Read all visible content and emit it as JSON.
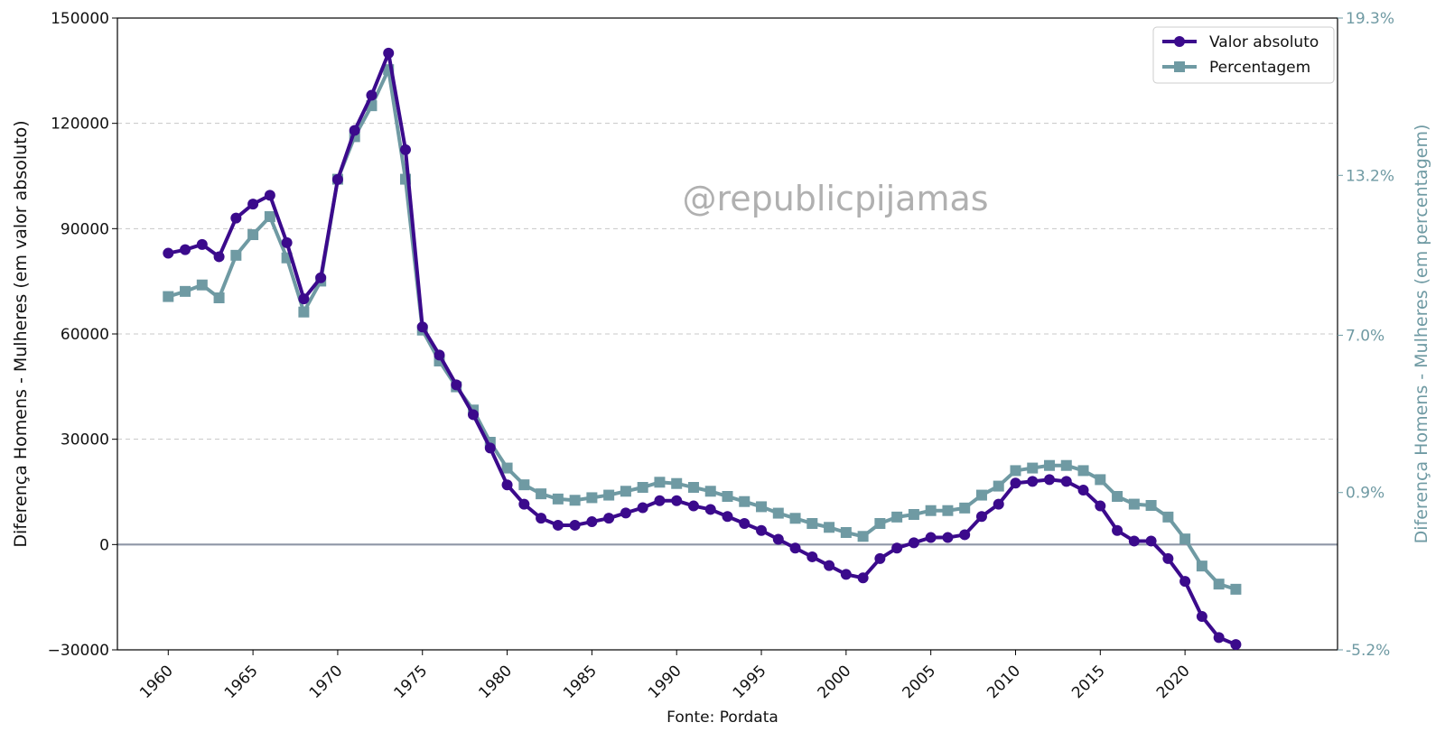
{
  "watermark": "@republicpijamas",
  "footer": "Fonte: Pordata",
  "chart_data": {
    "type": "line",
    "title": "",
    "xlabel": "",
    "ylabel": "Diferença Homens - Mulheres (em valor absoluto)",
    "ylabel_right": "Diferença Homens - Mulheres (em percentagem)",
    "x": [
      1960,
      1961,
      1962,
      1963,
      1964,
      1965,
      1966,
      1967,
      1968,
      1969,
      1970,
      1971,
      1972,
      1973,
      1974,
      1975,
      1976,
      1977,
      1978,
      1979,
      1980,
      1981,
      1982,
      1983,
      1984,
      1985,
      1986,
      1987,
      1988,
      1989,
      1990,
      1991,
      1992,
      1993,
      1994,
      1995,
      1996,
      1997,
      1998,
      1999,
      2000,
      2001,
      2002,
      2003,
      2004,
      2005,
      2006,
      2007,
      2008,
      2009,
      2010,
      2011,
      2012,
      2013,
      2014,
      2015,
      2016,
      2017,
      2018,
      2019,
      2020,
      2021,
      2022,
      2023
    ],
    "xlim": [
      1957,
      2029
    ],
    "xticks": [
      "1960",
      "1965",
      "1970",
      "1975",
      "1980",
      "1985",
      "1990",
      "1995",
      "2000",
      "2005",
      "2010",
      "2015",
      "2020"
    ],
    "ylim": [
      -30000,
      150000
    ],
    "yticks": [
      "−30000",
      "0",
      "30000",
      "60000",
      "90000",
      "120000",
      "150000"
    ],
    "ylim_right": [
      -5.2,
      19.3
    ],
    "yticks_right": [
      "-5.2%",
      "0.9%",
      "7.0%",
      "13.2%",
      "19.3%"
    ],
    "grid": "horizontal dashed",
    "zero_line": 0,
    "legend": "top-right",
    "series": [
      {
        "name": "Valor absoluto",
        "axis": "left",
        "color": "#3b0a8c",
        "marker": "circle",
        "values": [
          83000,
          84000,
          85500,
          82000,
          93000,
          97000,
          99500,
          86000,
          70000,
          76000,
          104000,
          118000,
          128000,
          140000,
          112500,
          62000,
          54000,
          45500,
          37000,
          27500,
          17000,
          11500,
          7500,
          5500,
          5500,
          6500,
          7500,
          9000,
          10500,
          12500,
          12500,
          11000,
          10000,
          8000,
          6000,
          4000,
          1500,
          -1000,
          -3500,
          -6000,
          -8500,
          -9500,
          -4000,
          -1000,
          500,
          2000,
          2000,
          2800,
          8000,
          11500,
          17500,
          18000,
          18500,
          18000,
          15500,
          11000,
          4000,
          1000,
          1000,
          -4000,
          -10500,
          -20500,
          -26500,
          -28500
        ]
      },
      {
        "name": "Percentagem",
        "axis": "right",
        "color": "#6f9aa3",
        "marker": "square",
        "values": [
          8.5,
          8.7,
          8.95,
          8.45,
          10.1,
          10.9,
          11.6,
          10.0,
          7.9,
          9.1,
          13.05,
          14.7,
          15.9,
          17.3,
          13.05,
          7.2,
          6.0,
          5.0,
          4.1,
          2.85,
          1.85,
          1.2,
          0.85,
          0.65,
          0.6,
          0.7,
          0.8,
          0.95,
          1.1,
          1.3,
          1.25,
          1.1,
          0.95,
          0.75,
          0.55,
          0.35,
          0.1,
          -0.1,
          -0.3,
          -0.45,
          -0.65,
          -0.8,
          -0.3,
          -0.05,
          0.05,
          0.2,
          0.2,
          0.3,
          0.8,
          1.15,
          1.75,
          1.85,
          1.95,
          1.95,
          1.75,
          1.4,
          0.75,
          0.45,
          0.4,
          -0.05,
          -0.9,
          -1.95,
          -2.65,
          -2.85
        ]
      }
    ]
  }
}
